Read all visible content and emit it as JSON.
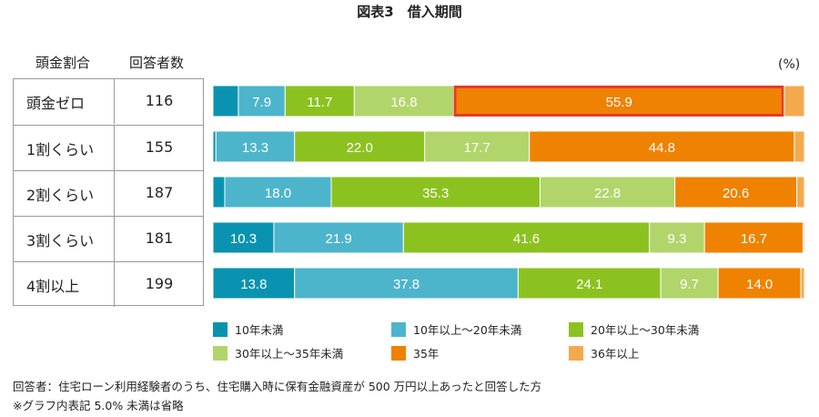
{
  "title": "図表3　借入期間",
  "table": {
    "headers": [
      "頭金割合",
      "回答者数"
    ],
    "rows": [
      {
        "label": "頭金ゼロ",
        "count": "116"
      },
      {
        "label": "1割くらい",
        "count": "155"
      },
      {
        "label": "2割くらい",
        "count": "187"
      },
      {
        "label": "3割くらい",
        "count": "181"
      },
      {
        "label": "4割以上",
        "count": "199"
      }
    ]
  },
  "chart_data": {
    "type": "bar",
    "orientation": "horizontal",
    "stacked": true,
    "unit": "(%)",
    "categories": [
      "頭金ゼロ",
      "1割くらい",
      "2割くらい",
      "3割くらい",
      "4割以上"
    ],
    "series": [
      {
        "name": "10年未満",
        "color": "#0a93b0",
        "values": [
          4.3,
          0.5,
          2.0,
          10.3,
          13.8
        ]
      },
      {
        "name": "10年以上〜20年未満",
        "color": "#4cb5cb",
        "values": [
          7.9,
          13.3,
          18.0,
          21.9,
          37.8
        ]
      },
      {
        "name": "20年以上〜30年未満",
        "color": "#8cc21f",
        "values": [
          11.7,
          22.0,
          35.3,
          41.6,
          24.1
        ]
      },
      {
        "name": "30年以上〜35年未満",
        "color": "#b1d56b",
        "values": [
          16.8,
          17.7,
          22.8,
          9.3,
          9.7
        ]
      },
      {
        "name": "35年",
        "color": "#ef8200",
        "values": [
          55.9,
          44.8,
          20.6,
          16.7,
          14.0
        ]
      },
      {
        "name": "36年以上",
        "color": "#f4a94f",
        "values": [
          3.4,
          1.7,
          1.3,
          0.2,
          0.6
        ]
      }
    ],
    "label_threshold": 5.0,
    "highlight": {
      "category": "頭金ゼロ",
      "series": "35年",
      "color": "#e8392a"
    },
    "xlim": [
      0,
      100
    ]
  },
  "footnotes": [
    "回答者：住宅ローン利用経験者のうち、住宅購入時に保有金融資産が 500 万円以上あったと回答した方",
    "※グラフ内表記 5.0% 未満は省略"
  ]
}
